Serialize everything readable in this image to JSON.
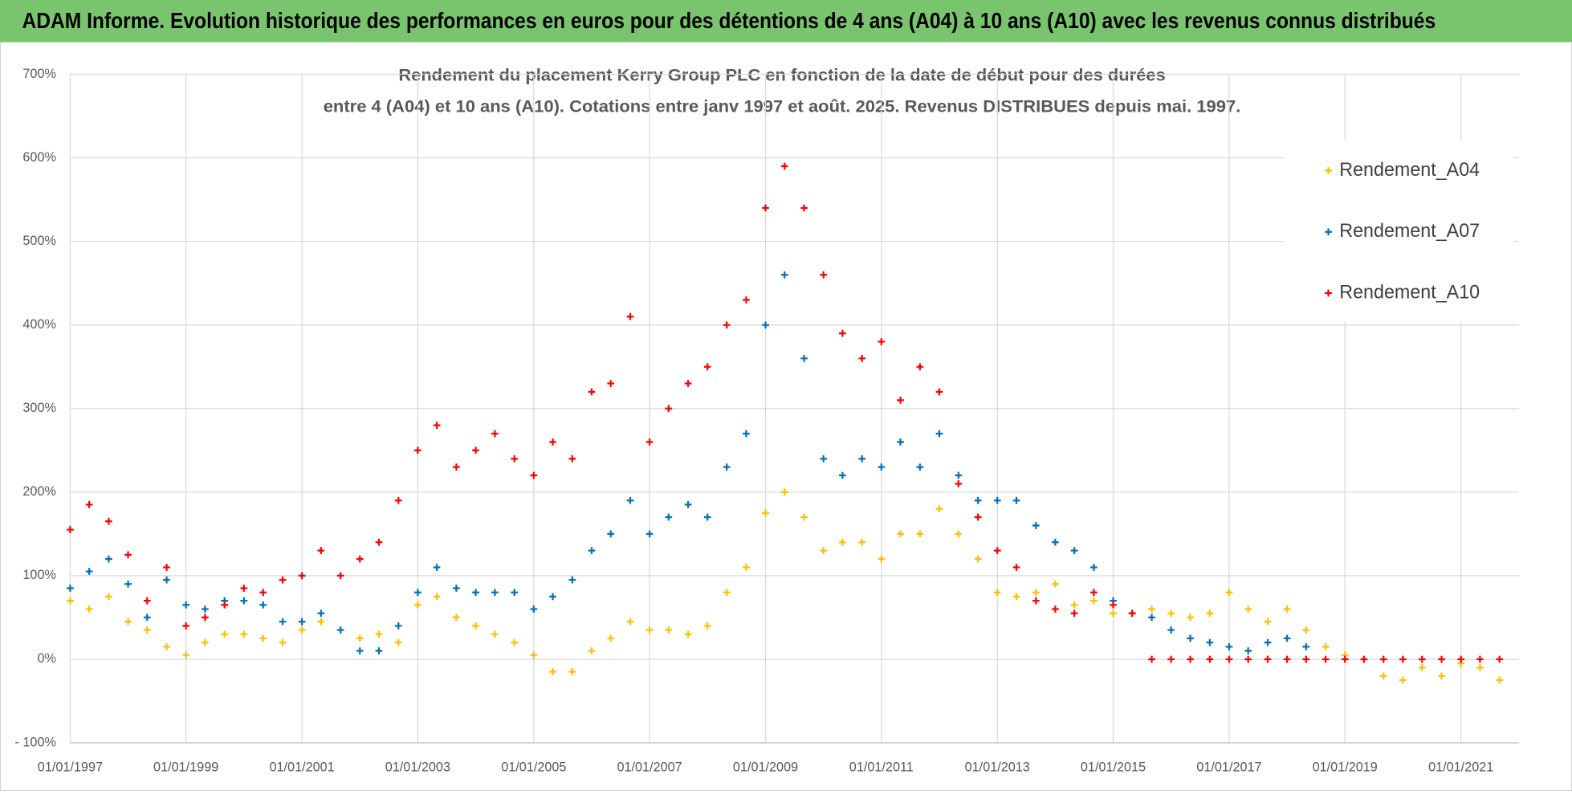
{
  "header": {
    "title": "ADAM Informe. Evolution historique des performances en euros pour des détentions de 4 ans (A04) à 10 ans (A10) avec les revenus connus distribués"
  },
  "chart_data": {
    "type": "scatter",
    "title": [
      "Rendement du placement Kerry Group PLC en fonction de la date de début pour des durées",
      "entre 4 (A04) et 10 ans (A10).  Cotations entre janv 1997 et août. 2025. Revenus DISTRIBUES depuis mai. 1997."
    ],
    "x": [
      "1997-01-01",
      "1997-05-01",
      "1997-09-01",
      "1998-01-01",
      "1998-05-01",
      "1998-09-01",
      "1999-01-01",
      "1999-05-01",
      "1999-09-01",
      "2000-01-01",
      "2000-05-01",
      "2000-09-01",
      "2001-01-01",
      "2001-05-01",
      "2001-09-01",
      "2002-01-01",
      "2002-05-01",
      "2002-09-01",
      "2003-01-01",
      "2003-05-01",
      "2003-09-01",
      "2004-01-01",
      "2004-05-01",
      "2004-09-01",
      "2005-01-01",
      "2005-05-01",
      "2005-09-01",
      "2006-01-01",
      "2006-05-01",
      "2006-09-01",
      "2007-01-01",
      "2007-05-01",
      "2007-09-01",
      "2008-01-01",
      "2008-05-01",
      "2008-09-01",
      "2009-01-01",
      "2009-05-01",
      "2009-09-01",
      "2010-01-01",
      "2010-05-01",
      "2010-09-01",
      "2011-01-01",
      "2011-05-01",
      "2011-09-01",
      "2012-01-01",
      "2012-05-01",
      "2012-09-01",
      "2013-01-01",
      "2013-05-01",
      "2013-09-01",
      "2014-01-01",
      "2014-05-01",
      "2014-09-01",
      "2015-01-01",
      "2015-05-01",
      "2015-09-01",
      "2016-01-01",
      "2016-05-01",
      "2016-09-01",
      "2017-01-01",
      "2017-05-01",
      "2017-09-01",
      "2018-01-01",
      "2018-05-01",
      "2018-09-01",
      "2019-01-01",
      "2019-05-01",
      "2019-09-01",
      "2020-01-01",
      "2020-05-01",
      "2020-09-01",
      "2021-01-01",
      "2021-05-01",
      "2021-09-01"
    ],
    "series": [
      {
        "name": "Rendement_A04",
        "color": "#ffc000",
        "values": [
          70,
          60,
          75,
          45,
          35,
          15,
          5,
          20,
          30,
          30,
          25,
          20,
          35,
          45,
          35,
          25,
          30,
          20,
          65,
          75,
          50,
          40,
          30,
          20,
          5,
          -15,
          -15,
          10,
          25,
          45,
          35,
          35,
          30,
          40,
          80,
          110,
          175,
          200,
          170,
          130,
          140,
          140,
          120,
          150,
          150,
          180,
          150,
          120,
          80,
          75,
          80,
          90,
          65,
          70,
          55,
          55,
          60,
          55,
          50,
          55,
          80,
          60,
          45,
          60,
          35,
          15,
          5,
          0,
          -20,
          -25,
          -10,
          -20,
          -5,
          -10,
          -25
        ]
      },
      {
        "name": "Rendement_A07",
        "color": "#0070c0",
        "values": [
          85,
          105,
          120,
          90,
          50,
          95,
          65,
          60,
          70,
          70,
          65,
          45,
          45,
          55,
          35,
          10,
          10,
          40,
          80,
          110,
          85,
          80,
          80,
          80,
          60,
          75,
          95,
          130,
          150,
          190,
          150,
          170,
          185,
          170,
          230,
          270,
          400,
          460,
          360,
          240,
          220,
          240,
          230,
          260,
          230,
          270,
          220,
          190,
          190,
          190,
          160,
          140,
          130,
          110,
          70,
          55,
          50,
          35,
          25,
          20,
          15,
          10,
          20,
          25,
          15,
          null,
          null,
          null,
          null,
          null,
          null,
          null,
          null,
          null,
          null
        ]
      },
      {
        "name": "Rendement_A10",
        "color": "#ff0000",
        "values": [
          155,
          185,
          165,
          125,
          70,
          110,
          40,
          50,
          65,
          85,
          80,
          95,
          100,
          130,
          100,
          120,
          140,
          190,
          250,
          280,
          230,
          250,
          270,
          240,
          220,
          260,
          240,
          320,
          330,
          410,
          260,
          300,
          330,
          350,
          400,
          430,
          540,
          590,
          540,
          460,
          390,
          360,
          380,
          310,
          350,
          320,
          210,
          170,
          130,
          110,
          70,
          60,
          55,
          80,
          65,
          55,
          0,
          0,
          0,
          0,
          0,
          0,
          0,
          0,
          0,
          0,
          0,
          0,
          0,
          0,
          0,
          0,
          0,
          0,
          0
        ]
      }
    ],
    "xlim": [
      "1997-01-01",
      "2022-01-01"
    ],
    "xticks": [
      {
        "value": "1997-01-01",
        "label": "01/01/1997"
      },
      {
        "value": "1999-01-01",
        "label": "01/01/1999"
      },
      {
        "value": "2001-01-01",
        "label": "01/01/2001"
      },
      {
        "value": "2003-01-01",
        "label": "01/01/2003"
      },
      {
        "value": "2005-01-01",
        "label": "01/01/2005"
      },
      {
        "value": "2007-01-01",
        "label": "01/01/2007"
      },
      {
        "value": "2009-01-01",
        "label": "01/01/2009"
      },
      {
        "value": "2011-01-01",
        "label": "01/01/2011"
      },
      {
        "value": "2013-01-01",
        "label": "01/01/2013"
      },
      {
        "value": "2015-01-01",
        "label": "01/01/2015"
      },
      {
        "value": "2017-01-01",
        "label": "01/01/2017"
      },
      {
        "value": "2019-01-01",
        "label": "01/01/2019"
      },
      {
        "value": "2021-01-01",
        "label": "01/01/2021"
      }
    ],
    "ylim": [
      -100,
      700
    ],
    "yticks": [
      {
        "value": -100,
        "label": "- 100%"
      },
      {
        "value": 0,
        "label": "0%"
      },
      {
        "value": 100,
        "label": "100%"
      },
      {
        "value": 200,
        "label": "200%"
      },
      {
        "value": 300,
        "label": "300%"
      },
      {
        "value": 400,
        "label": "400%"
      },
      {
        "value": 500,
        "label": "500%"
      },
      {
        "value": 600,
        "label": "600%"
      },
      {
        "value": 700,
        "label": "700%"
      }
    ],
    "grid": true,
    "legend": "top-right"
  }
}
